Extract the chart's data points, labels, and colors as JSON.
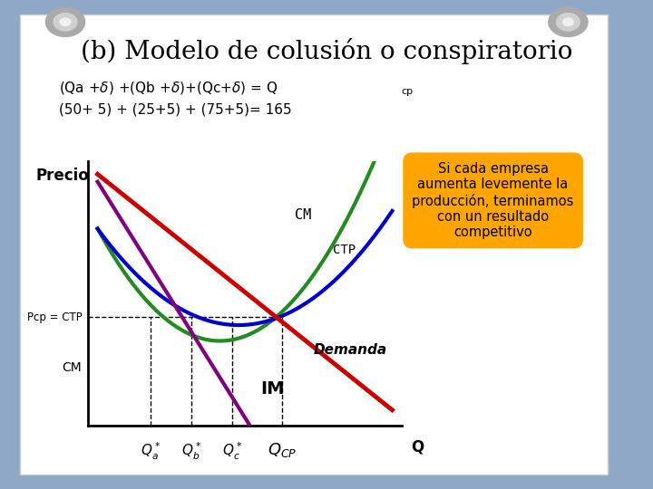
{
  "title": "(b) Modelo de colusión o conspiratorio",
  "title_fontsize": 20,
  "bg_color": "#8fa8c8",
  "paper_color": "#ffffff",
  "ylabel": "Precio",
  "xlabel": "Q",
  "CM_color": "#228B22",
  "CTP_color": "#0000cd",
  "IM_color": "#800080",
  "Demanda_color": "#cc0000",
  "annotation_text": "Si cada empresa\naumenta levemente la\nproducción, terminamos\ncon un resultado\ncompetitivo",
  "annotation_facecolor": "#FFA500",
  "xlim": [
    0,
    10
  ],
  "ylim": [
    0,
    10
  ],
  "qa_x": 2.0,
  "qb_x": 3.3,
  "qc_x": 4.6,
  "qcp_x": 6.2,
  "pcp_y": 4.1
}
